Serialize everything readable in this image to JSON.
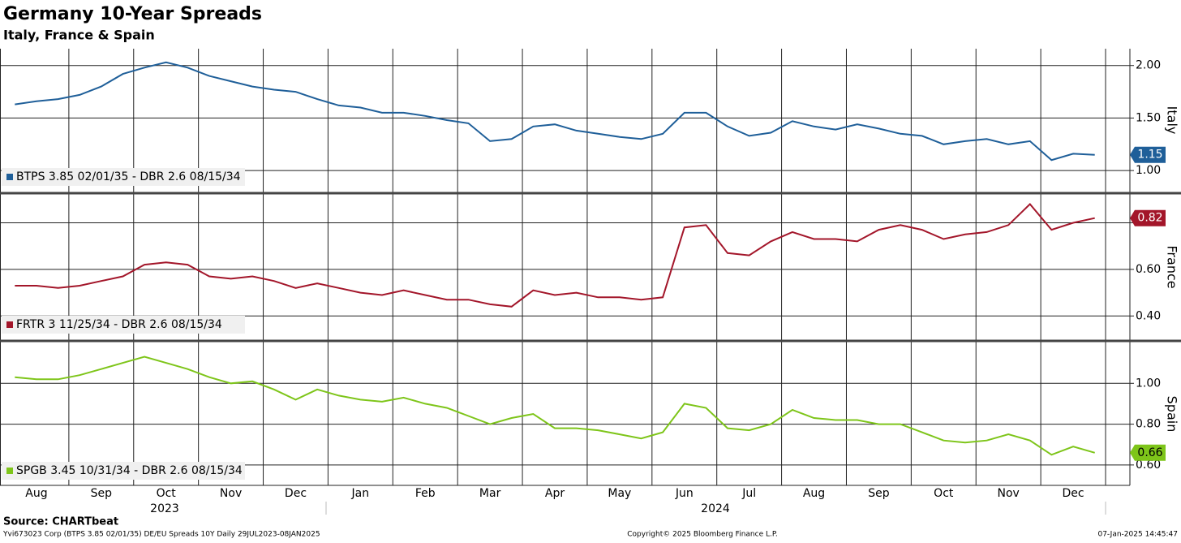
{
  "chart_data": [
    {
      "type": "line",
      "title": "Germany 10-Year Spreads",
      "subtitle": "Italy, France & Spain",
      "y_label": "Italy",
      "ylim": [
        0.8,
        2.16
      ],
      "yticks": [
        {
          "value": 1,
          "label": "1.00"
        },
        {
          "value": 1.5,
          "label": "1.50"
        },
        {
          "value": 2,
          "label": "2.00"
        }
      ],
      "grid": true,
      "legend": "lower left",
      "last_value_label": "1.15",
      "series": [
        {
          "name": "BTPS 3.85 02/01/35 - DBR 2.6 08/15/34",
          "color": "#1f5f99",
          "values": [
            1.63,
            1.66,
            1.68,
            1.72,
            1.8,
            1.92,
            1.98,
            2.03,
            1.98,
            1.9,
            1.85,
            1.8,
            1.77,
            1.75,
            1.68,
            1.62,
            1.6,
            1.55,
            1.55,
            1.52,
            1.48,
            1.45,
            1.28,
            1.3,
            1.42,
            1.44,
            1.38,
            1.35,
            1.32,
            1.3,
            1.35,
            1.55,
            1.55,
            1.42,
            1.33,
            1.36,
            1.47,
            1.42,
            1.39,
            1.44,
            1.4,
            1.35,
            1.33,
            1.25,
            1.28,
            1.3,
            1.25,
            1.28,
            1.1,
            1.16,
            1.15
          ]
        }
      ]
    },
    {
      "type": "line",
      "y_label": "France",
      "ylim": [
        0.3,
        0.92
      ],
      "yticks": [
        {
          "value": 0.4,
          "label": "0.40"
        },
        {
          "value": 0.6,
          "label": "0.60"
        },
        {
          "value": 0.8,
          "label": "0.80"
        }
      ],
      "grid": true,
      "legend": "lower left",
      "last_value_label": "0.82",
      "series": [
        {
          "name": "FRTR 3 11/25/34 - DBR 2.6 08/15/34",
          "color": "#a3162a",
          "values": [
            0.53,
            0.53,
            0.52,
            0.53,
            0.55,
            0.57,
            0.62,
            0.63,
            0.62,
            0.57,
            0.56,
            0.57,
            0.55,
            0.52,
            0.54,
            0.52,
            0.5,
            0.49,
            0.51,
            0.49,
            0.47,
            0.47,
            0.45,
            0.44,
            0.51,
            0.49,
            0.5,
            0.48,
            0.48,
            0.47,
            0.48,
            0.78,
            0.79,
            0.67,
            0.66,
            0.72,
            0.76,
            0.73,
            0.73,
            0.72,
            0.77,
            0.79,
            0.77,
            0.73,
            0.75,
            0.76,
            0.79,
            0.88,
            0.77,
            0.8,
            0.82
          ]
        }
      ]
    },
    {
      "type": "line",
      "y_label": "Spain",
      "ylim": [
        0.5,
        1.2
      ],
      "yticks": [
        {
          "value": 0.6,
          "label": "0.60"
        },
        {
          "value": 0.8,
          "label": "0.80"
        },
        {
          "value": 1,
          "label": "1.00"
        }
      ],
      "grid": true,
      "legend": "lower left",
      "last_value_label": "0.66",
      "categories": [
        null,
        "Aug",
        null,
        null,
        "Sep",
        null,
        null,
        "Oct",
        null,
        null,
        "Nov",
        null,
        null,
        "Dec",
        null,
        null,
        "Jan",
        null,
        null,
        "Feb",
        null,
        null,
        "Mar",
        null,
        null,
        "Apr",
        null,
        null,
        "May",
        null,
        null,
        "Jun",
        null,
        null,
        "Jul",
        null,
        null,
        "Aug",
        null,
        null,
        "Sep",
        null,
        null,
        "Oct",
        null,
        null,
        "Nov",
        null,
        null,
        "Dec",
        null
      ],
      "years": [
        "2023",
        "2024"
      ],
      "series": [
        {
          "name": "SPGB 3.45 10/31/34 - DBR 2.6 08/15/34",
          "color": "#7ec51a",
          "values": [
            1.03,
            1.02,
            1.02,
            1.04,
            1.07,
            1.1,
            1.13,
            1.1,
            1.07,
            1.03,
            1.0,
            1.01,
            0.97,
            0.92,
            0.97,
            0.94,
            0.92,
            0.91,
            0.93,
            0.9,
            0.88,
            0.84,
            0.8,
            0.83,
            0.85,
            0.78,
            0.78,
            0.77,
            0.75,
            0.73,
            0.76,
            0.9,
            0.88,
            0.78,
            0.77,
            0.8,
            0.87,
            0.83,
            0.82,
            0.82,
            0.8,
            0.8,
            0.76,
            0.72,
            0.71,
            0.72,
            0.75,
            0.72,
            0.65,
            0.69,
            0.66
          ]
        }
      ]
    }
  ],
  "footer": {
    "source": "Source: CHARTbeat",
    "ticker": "Yvi673023 Corp (BTPS 3.85 02/01/35) DE/EU Spreads 10Y  Daily 29JUL2023-08JAN2025",
    "copyright": "Copyright© 2025 Bloomberg Finance L.P.",
    "timestamp": "07-Jan-2025 14:45:47"
  }
}
